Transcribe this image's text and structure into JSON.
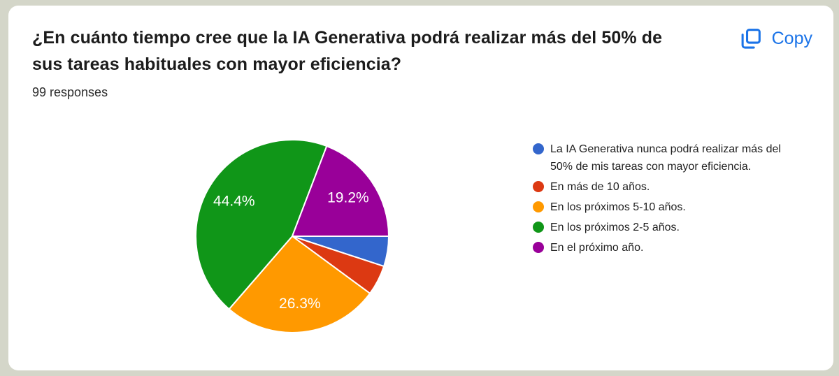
{
  "card": {
    "title": "¿En cuánto tiempo cree que la IA Generativa podrá realizar más del 50% de sus tareas habituales con mayor eficiencia?",
    "responses": "99 responses",
    "copy_label": "Copy"
  },
  "colors": {
    "frame_background": "#d4d6c9",
    "card_background": "#ffffff",
    "title_text": "#1c1c1c",
    "body_text": "#212121",
    "accent_blue": "#1a73e8",
    "slice_label_text": "#ffffff"
  },
  "chart_data": {
    "type": "pie",
    "total_responses": 99,
    "start_angle_deg": 90,
    "legend_position": "right",
    "slices": [
      {
        "label": "La IA Generativa nunca podrá realizar más del 50% de mis tareas con mayor eficiencia.",
        "responses": 5,
        "percent": 5.1,
        "percent_label": "",
        "color": "#3366CC"
      },
      {
        "label": "En más de 10 años.",
        "responses": 5,
        "percent": 5.1,
        "percent_label": "",
        "color": "#DC3912"
      },
      {
        "label": "En los próximos 5-10 años.",
        "responses": 26,
        "percent": 26.3,
        "percent_label": "26.3%",
        "color": "#FF9900"
      },
      {
        "label": "En los próximos 2-5 años.",
        "responses": 44,
        "percent": 44.4,
        "percent_label": "44.4%",
        "color": "#109618"
      },
      {
        "label": "En el próximo año.",
        "responses": 19,
        "percent": 19.2,
        "percent_label": "19.2%",
        "color": "#990099"
      }
    ]
  }
}
